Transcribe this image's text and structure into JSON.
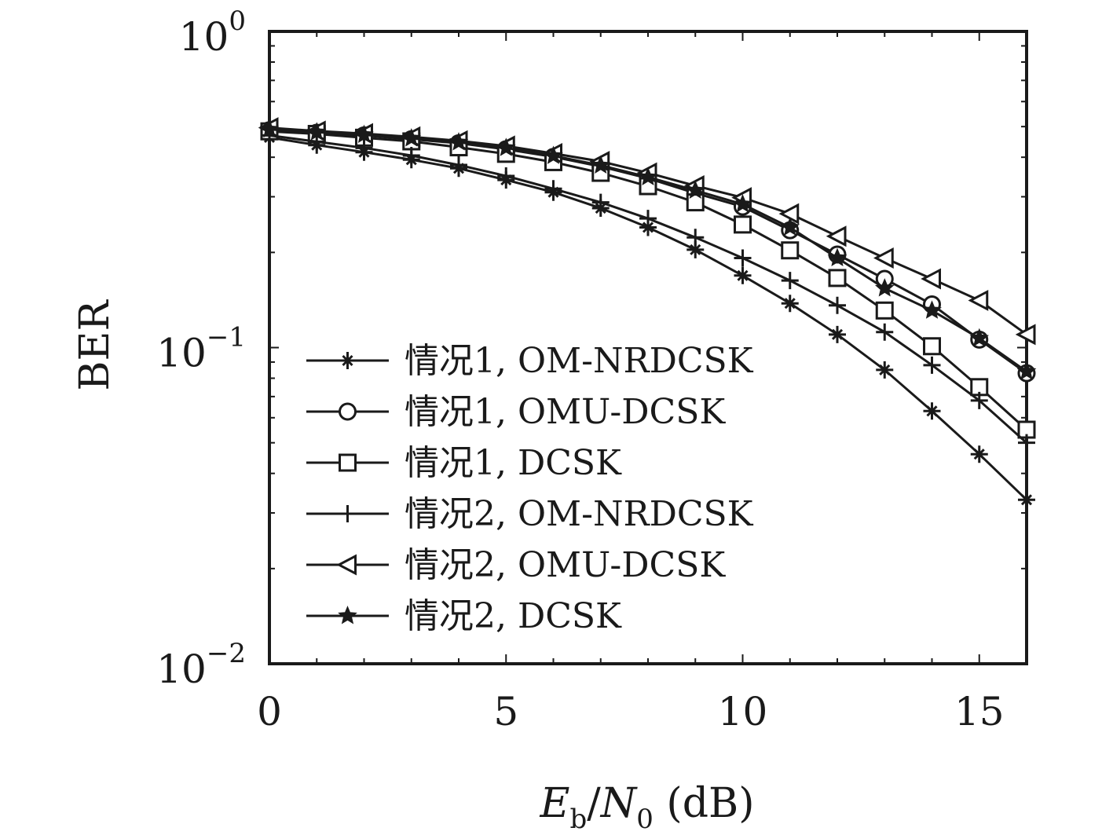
{
  "chart_data": {
    "type": "line",
    "xlabel": "E_b/N_0 (dB)",
    "ylabel": "BER",
    "xlim": [
      0,
      16
    ],
    "ylim": [
      0.01,
      1
    ],
    "y_scale": "log",
    "x_ticks": [
      0,
      5,
      10,
      15
    ],
    "y_ticks": [
      {
        "value": 1,
        "base": "10",
        "exp": "0"
      },
      {
        "value": 0.1,
        "base": "10",
        "exp": "−1"
      },
      {
        "value": 0.01,
        "base": "10",
        "exp": "−2"
      }
    ],
    "grid": false,
    "legend_position": "bottom-left",
    "x": [
      0,
      1,
      2,
      3,
      4,
      5,
      6,
      7,
      8,
      9,
      10,
      11,
      12,
      13,
      14,
      15,
      16
    ],
    "series": [
      {
        "name": "情况1, OM-NRDCSK",
        "marker": "cross",
        "values": [
          0.462,
          0.437,
          0.415,
          0.393,
          0.369,
          0.339,
          0.31,
          0.276,
          0.24,
          0.204,
          0.169,
          0.138,
          0.11,
          0.085,
          0.063,
          0.046,
          0.033
        ]
      },
      {
        "name": "情况1, OMU-DCSK",
        "marker": "circle",
        "values": [
          0.487,
          0.478,
          0.469,
          0.456,
          0.443,
          0.424,
          0.401,
          0.374,
          0.343,
          0.308,
          0.279,
          0.235,
          0.197,
          0.165,
          0.137,
          0.106,
          0.083
        ]
      },
      {
        "name": "情况1, DCSK",
        "marker": "square",
        "values": [
          0.483,
          0.474,
          0.461,
          0.449,
          0.43,
          0.41,
          0.386,
          0.357,
          0.324,
          0.288,
          0.245,
          0.203,
          0.166,
          0.131,
          0.101,
          0.075,
          0.055
        ]
      },
      {
        "name": "情况2, OM-NRDCSK",
        "marker": "plus",
        "values": [
          0.469,
          0.448,
          0.428,
          0.405,
          0.378,
          0.349,
          0.318,
          0.288,
          0.256,
          0.223,
          0.192,
          0.163,
          0.136,
          0.112,
          0.088,
          0.068,
          0.05
        ]
      },
      {
        "name": "情况2, OMU-DCSK",
        "marker": "triangle-left",
        "values": [
          0.496,
          0.484,
          0.475,
          0.464,
          0.451,
          0.434,
          0.411,
          0.388,
          0.357,
          0.325,
          0.298,
          0.265,
          0.225,
          0.192,
          0.165,
          0.141,
          0.11
        ]
      },
      {
        "name": "情况2, DCSK",
        "marker": "star",
        "values": [
          0.49,
          0.48,
          0.471,
          0.459,
          0.446,
          0.428,
          0.404,
          0.377,
          0.346,
          0.314,
          0.284,
          0.24,
          0.192,
          0.154,
          0.131,
          0.107,
          0.084
        ]
      }
    ]
  }
}
